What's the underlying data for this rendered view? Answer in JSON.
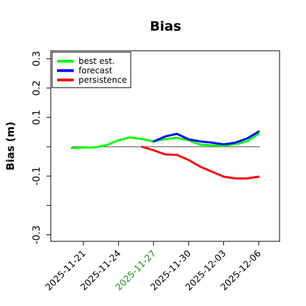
{
  "chart_data": {
    "type": "line",
    "title": "Bias",
    "xlabel": "",
    "ylabel": "Bias (m)",
    "ylim": [
      -0.32,
      0.33
    ],
    "yticks": [
      -0.3,
      -0.2,
      -0.1,
      0.0,
      0.1,
      0.2,
      0.3
    ],
    "ytick_labels": [
      "-0.3",
      "",
      "-0.1",
      "",
      "0.1",
      "0.2",
      "0.3"
    ],
    "xticks": [
      "2025-11-21",
      "2025-11-24",
      "2025-11-27",
      "2025-11-30",
      "2025-12-03",
      "2025-12-06"
    ],
    "highlight_tick": "2025-11-27",
    "highlight_color": "#228b22",
    "reference_line": 0.0,
    "legend_position": "top-left",
    "series": [
      {
        "name": "best est.",
        "color": "#00ff00",
        "x": [
          "2025-11-20",
          "2025-11-21",
          "2025-11-22",
          "2025-11-23",
          "2025-11-24",
          "2025-11-25",
          "2025-11-26",
          "2025-11-27",
          "2025-11-28",
          "2025-11-29",
          "2025-11-30",
          "2025-12-01",
          "2025-12-02",
          "2025-12-03",
          "2025-12-04",
          "2025-12-05",
          "2025-12-06"
        ],
        "values": [
          -0.004,
          -0.003,
          -0.002,
          0.006,
          0.022,
          0.032,
          0.026,
          0.018,
          0.026,
          0.03,
          0.022,
          0.007,
          0.005,
          0.003,
          0.009,
          0.018,
          0.044
        ]
      },
      {
        "name": "forecast",
        "color": "#0000ff",
        "x": [
          "2025-11-27",
          "2025-11-28",
          "2025-11-29",
          "2025-11-30",
          "2025-12-01",
          "2025-12-02",
          "2025-12-03",
          "2025-12-04",
          "2025-12-05",
          "2025-12-06"
        ],
        "values": [
          0.018,
          0.035,
          0.044,
          0.025,
          0.018,
          0.014,
          0.008,
          0.014,
          0.028,
          0.052
        ]
      },
      {
        "name": "persistence",
        "color": "#ff0000",
        "x": [
          "2025-11-26",
          "2025-11-27",
          "2025-11-28",
          "2025-11-29",
          "2025-11-30",
          "2025-12-01",
          "2025-12-02",
          "2025-12-03",
          "2025-12-04",
          "2025-12-05",
          "2025-12-06"
        ],
        "values": [
          0.0,
          -0.012,
          -0.026,
          -0.028,
          -0.045,
          -0.068,
          -0.085,
          -0.102,
          -0.108,
          -0.108,
          -0.102
        ]
      }
    ]
  }
}
